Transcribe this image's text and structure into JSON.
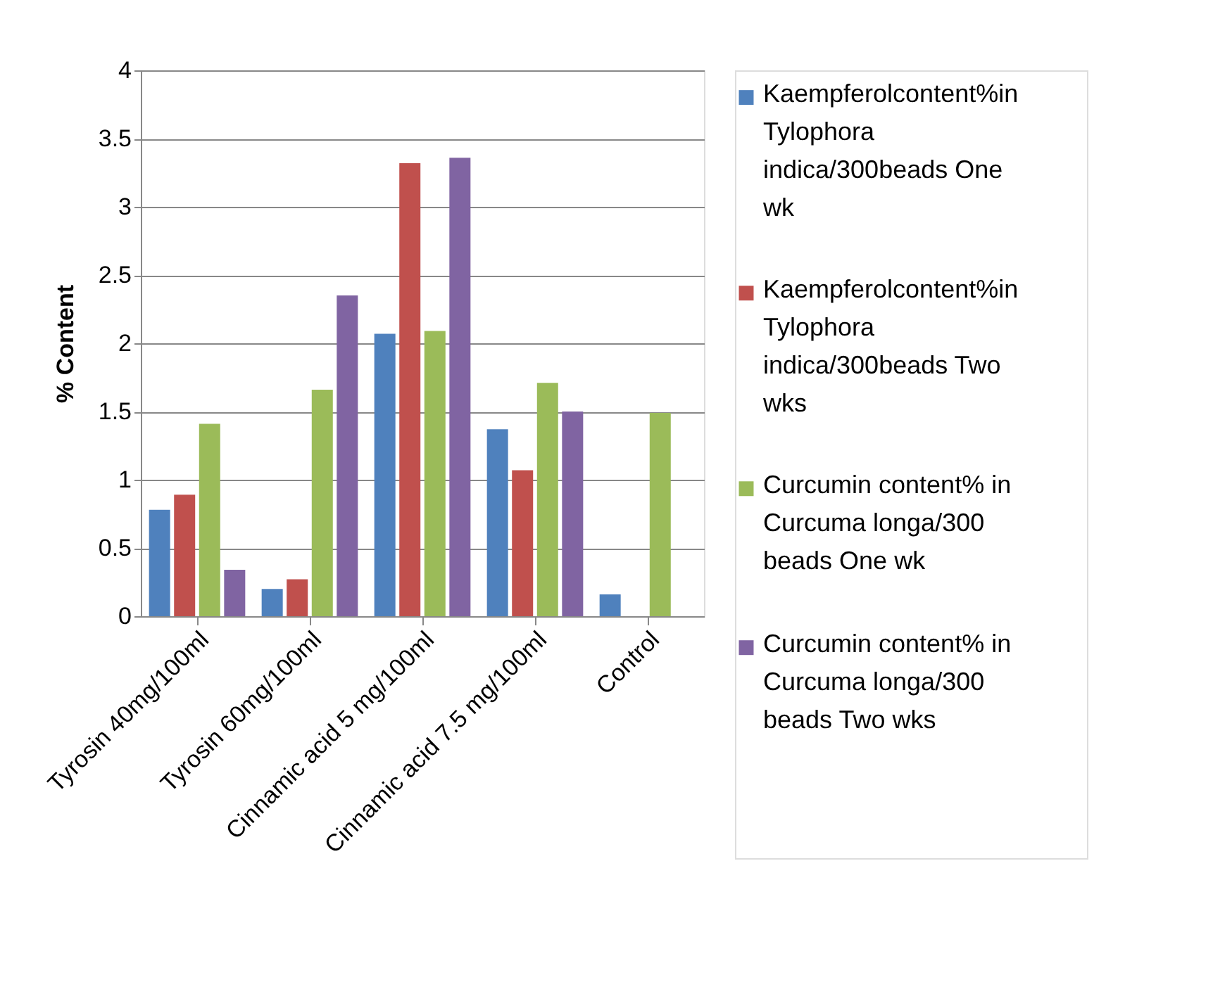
{
  "chart_data": {
    "type": "bar",
    "ylabel": "% Content",
    "categories": [
      "Tyrosin 40mg/100ml",
      "Tyrosin 60mg/100ml",
      "Cinnamic acid 5 mg/100ml",
      "Cinnamic acid 7.5 mg/100ml",
      "Control"
    ],
    "series": [
      {
        "name": "Kaempferolcontent%in Tylophora indica/300beads One wk",
        "color": "#4f81bd",
        "values": [
          0.78,
          0.2,
          2.07,
          1.37,
          0.16
        ]
      },
      {
        "name": "Kaempferolcontent%in Tylophora indica/300beads Two wks",
        "color": "#c0504d",
        "values": [
          0.89,
          0.27,
          3.32,
          1.07,
          null
        ]
      },
      {
        "name": "Curcumin content% in Curcuma longa/300 beads  One wk",
        "color": "#9bbb59",
        "values": [
          1.41,
          1.66,
          2.09,
          1.71,
          1.49
        ]
      },
      {
        "name": "Curcumin content% in Curcuma longa/300 beads  Two wks",
        "color": "#8064a2",
        "values": [
          0.34,
          2.35,
          3.36,
          1.5,
          null
        ]
      }
    ],
    "ylim": [
      0,
      4
    ],
    "yticks": [
      0,
      0.5,
      1,
      1.5,
      2,
      2.5,
      3,
      3.5,
      4
    ],
    "grid": "y",
    "legend": "right"
  }
}
